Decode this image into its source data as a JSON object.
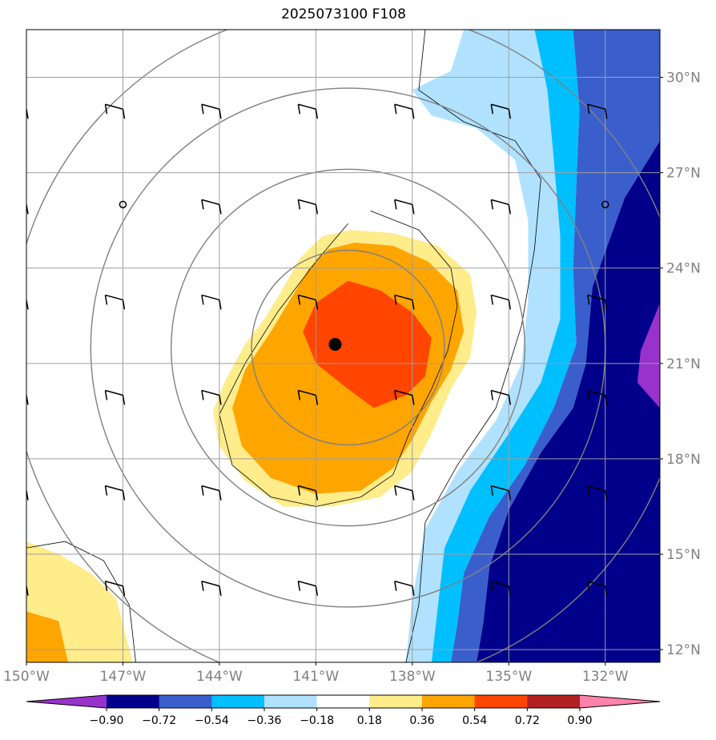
{
  "title": "2025073100 F108",
  "chart_data": {
    "type": "heatmap",
    "title": "2025073100 F108",
    "x_axis": {
      "ticks": [
        -150,
        -147,
        -144,
        -141,
        -138,
        -135,
        -132
      ],
      "tick_labels": [
        "150°W",
        "147°W",
        "144°W",
        "141°W",
        "138°W",
        "135°W",
        "132°W"
      ],
      "range": [
        -150.0,
        -130.3
      ]
    },
    "y_axis": {
      "ticks": [
        12,
        15,
        18,
        21,
        24,
        27,
        30
      ],
      "tick_labels": [
        "12°N",
        "15°N",
        "18°N",
        "21°N",
        "24°N",
        "27°N",
        "30°N"
      ],
      "range": [
        11.6,
        31.5
      ],
      "position": "right"
    },
    "grid": true,
    "colorbar": {
      "orientation": "horizontal",
      "levels": [
        -0.9,
        -0.72,
        -0.54,
        -0.36,
        -0.18,
        0.18,
        0.36,
        0.54,
        0.72,
        0.9
      ],
      "tick_labels": [
        "−0.90",
        "−0.72",
        "−0.54",
        "−0.36",
        "−0.18",
        "0.18",
        "0.36",
        "0.54",
        "0.72",
        "0.90"
      ],
      "colors": [
        "#9932CC",
        "#00008B",
        "#3A5FCD",
        "#00BFFF",
        "#B0E2FF",
        "#FFFFFF",
        "#FFEC8B",
        "#FFA500",
        "#FF4500",
        "#B22222",
        "#FF82AB"
      ],
      "extend": "both"
    },
    "storm_center": {
      "lon": -140.4,
      "lat": 21.6
    },
    "range_rings_center": {
      "lon": -140.0,
      "lat": 21.5
    },
    "range_rings_deg": [
      3.0,
      5.5,
      8.0,
      10.5
    ],
    "filled_regions": [
      {
        "level": "0.18–0.36",
        "color": "#FFEC8B",
        "polygon": [
          [
            -139.9,
            25.2
          ],
          [
            -138.6,
            25.1
          ],
          [
            -137.2,
            24.7
          ],
          [
            -136.2,
            23.8
          ],
          [
            -136.0,
            22.6
          ],
          [
            -136.2,
            21.2
          ],
          [
            -136.8,
            20.2
          ],
          [
            -137.4,
            18.8
          ],
          [
            -138.0,
            17.6
          ],
          [
            -139.0,
            16.8
          ],
          [
            -140.5,
            16.5
          ],
          [
            -142.0,
            16.5
          ],
          [
            -143.2,
            17.3
          ],
          [
            -144.0,
            18.4
          ],
          [
            -144.2,
            19.5
          ],
          [
            -143.8,
            20.5
          ],
          [
            -143.2,
            21.6
          ],
          [
            -142.6,
            22.4
          ],
          [
            -142.0,
            23.4
          ],
          [
            -141.5,
            24.3
          ],
          [
            -140.8,
            25.0
          ]
        ]
      },
      {
        "level": "0.36–0.54",
        "color": "#FFA500",
        "polygon": [
          [
            -139.8,
            24.8
          ],
          [
            -138.6,
            24.7
          ],
          [
            -137.5,
            24.2
          ],
          [
            -136.6,
            23.3
          ],
          [
            -136.4,
            22.0
          ],
          [
            -136.8,
            20.8
          ],
          [
            -137.4,
            19.8
          ],
          [
            -138.0,
            18.6
          ],
          [
            -138.6,
            17.7
          ],
          [
            -139.6,
            17.0
          ],
          [
            -141.0,
            16.9
          ],
          [
            -142.4,
            17.4
          ],
          [
            -143.3,
            18.4
          ],
          [
            -143.6,
            19.6
          ],
          [
            -143.2,
            20.8
          ],
          [
            -142.4,
            22.0
          ],
          [
            -141.8,
            23.0
          ],
          [
            -141.2,
            24.0
          ],
          [
            -140.6,
            24.6
          ]
        ]
      },
      {
        "level": "0.54–0.72",
        "color": "#FF4500",
        "polygon": [
          [
            -140.0,
            23.6
          ],
          [
            -139.0,
            23.3
          ],
          [
            -138.0,
            22.6
          ],
          [
            -137.4,
            21.8
          ],
          [
            -137.6,
            20.6
          ],
          [
            -138.2,
            20.0
          ],
          [
            -139.2,
            19.6
          ],
          [
            -140.0,
            20.2
          ],
          [
            -141.0,
            21.0
          ],
          [
            -141.4,
            22.0
          ],
          [
            -141.0,
            22.9
          ]
        ]
      },
      {
        "level": "0.18–0.36",
        "color": "#FFEC8B",
        "polygon": [
          [
            -150.0,
            15.4
          ],
          [
            -149.0,
            15.0
          ],
          [
            -148.0,
            14.4
          ],
          [
            -147.2,
            13.6
          ],
          [
            -146.9,
            12.4
          ],
          [
            -146.7,
            11.6
          ],
          [
            -150.0,
            11.6
          ]
        ]
      },
      {
        "level": "0.36–0.54",
        "color": "#FFA500",
        "polygon": [
          [
            -150.0,
            13.2
          ],
          [
            -149.0,
            12.9
          ],
          [
            -148.8,
            12.0
          ],
          [
            -148.7,
            11.6
          ],
          [
            -150.0,
            11.6
          ]
        ]
      },
      {
        "level": "−0.36–−0.18",
        "color": "#B0E2FF",
        "polygon": [
          [
            -136.4,
            31.5
          ],
          [
            -134.2,
            31.5
          ],
          [
            -133.8,
            29.6
          ],
          [
            -133.6,
            27.4
          ],
          [
            -133.4,
            25.0
          ],
          [
            -133.4,
            22.4
          ],
          [
            -134.0,
            20.4
          ],
          [
            -135.0,
            18.8
          ],
          [
            -136.2,
            17.0
          ],
          [
            -137.0,
            15.2
          ],
          [
            -137.2,
            13.4
          ],
          [
            -137.4,
            11.6
          ],
          [
            -138.2,
            11.6
          ],
          [
            -138.0,
            13.6
          ],
          [
            -137.6,
            15.8
          ],
          [
            -136.6,
            17.6
          ],
          [
            -135.4,
            19.2
          ],
          [
            -134.6,
            21.0
          ],
          [
            -134.4,
            23.0
          ],
          [
            -134.4,
            25.5
          ],
          [
            -134.8,
            27.4
          ],
          [
            -136.0,
            28.4
          ],
          [
            -137.4,
            28.8
          ],
          [
            -138.0,
            29.6
          ],
          [
            -136.8,
            30.2
          ]
        ]
      },
      {
        "level": "−0.54–−0.36",
        "color": "#00BFFF",
        "polygon": [
          [
            -134.2,
            31.5
          ],
          [
            -133.0,
            31.5
          ],
          [
            -132.8,
            29.0
          ],
          [
            -132.9,
            26.6
          ],
          [
            -133.0,
            24.0
          ],
          [
            -132.9,
            21.6
          ],
          [
            -133.6,
            19.6
          ],
          [
            -134.5,
            17.8
          ],
          [
            -135.6,
            16.2
          ],
          [
            -136.4,
            14.4
          ],
          [
            -136.6,
            12.8
          ],
          [
            -136.8,
            11.6
          ],
          [
            -137.4,
            11.6
          ],
          [
            -137.2,
            13.4
          ],
          [
            -137.0,
            15.2
          ],
          [
            -136.2,
            17.0
          ],
          [
            -135.0,
            18.8
          ],
          [
            -134.0,
            20.4
          ],
          [
            -133.4,
            22.4
          ],
          [
            -133.4,
            25.0
          ],
          [
            -133.6,
            27.4
          ],
          [
            -133.8,
            29.6
          ]
        ]
      },
      {
        "level": "−0.72–−0.54",
        "color": "#3A5FCD",
        "polygon": [
          [
            -133.0,
            31.5
          ],
          [
            -130.3,
            31.5
          ],
          [
            -130.3,
            28.0
          ],
          [
            -131.4,
            26.2
          ],
          [
            -132.4,
            23.4
          ],
          [
            -132.6,
            21.0
          ],
          [
            -133.0,
            19.6
          ],
          [
            -134.0,
            18.2
          ],
          [
            -135.0,
            16.4
          ],
          [
            -135.6,
            14.6
          ],
          [
            -135.8,
            12.8
          ],
          [
            -136.0,
            11.6
          ],
          [
            -136.8,
            11.6
          ],
          [
            -136.6,
            12.8
          ],
          [
            -136.4,
            14.4
          ],
          [
            -135.6,
            16.2
          ],
          [
            -134.5,
            17.8
          ],
          [
            -133.6,
            19.6
          ],
          [
            -132.9,
            21.6
          ],
          [
            -133.0,
            24.0
          ],
          [
            -132.9,
            26.6
          ],
          [
            -132.8,
            29.0
          ]
        ]
      },
      {
        "level": "−0.90–−0.72",
        "color": "#00008B",
        "polygon": [
          [
            -130.3,
            28.0
          ],
          [
            -130.3,
            11.6
          ],
          [
            -136.0,
            11.6
          ],
          [
            -135.8,
            12.8
          ],
          [
            -135.6,
            14.6
          ],
          [
            -135.0,
            16.4
          ],
          [
            -134.0,
            18.2
          ],
          [
            -133.0,
            19.6
          ],
          [
            -132.6,
            21.0
          ],
          [
            -132.4,
            23.4
          ],
          [
            -131.4,
            26.2
          ]
        ]
      },
      {
        "level": "< −0.90",
        "color": "#9932CC",
        "polygon": [
          [
            -130.3,
            22.9
          ],
          [
            -130.9,
            21.4
          ],
          [
            -131.0,
            20.4
          ],
          [
            -130.3,
            19.6
          ]
        ]
      }
    ],
    "contours": [
      [
        [
          -139.3,
          25.8
        ],
        [
          -137.8,
          25.2
        ],
        [
          -136.8,
          24.0
        ],
        [
          -136.6,
          22.8
        ],
        [
          -136.9,
          21.4
        ],
        [
          -137.4,
          20.2
        ],
        [
          -138.1,
          18.8
        ],
        [
          -138.6,
          17.5
        ],
        [
          -139.6,
          16.8
        ],
        [
          -141.0,
          16.5
        ],
        [
          -142.4,
          16.8
        ],
        [
          -143.6,
          17.8
        ],
        [
          -144.0,
          19.4
        ],
        [
          -143.2,
          21.0
        ],
        [
          -142.2,
          22.6
        ],
        [
          -141.0,
          24.2
        ],
        [
          -140.0,
          25.4
        ]
      ],
      [
        [
          -137.6,
          31.5
        ],
        [
          -137.8,
          29.6
        ],
        [
          -136.4,
          28.6
        ],
        [
          -134.8,
          28.0
        ],
        [
          -134.0,
          26.8
        ],
        [
          -134.2,
          24.6
        ],
        [
          -134.6,
          22.2
        ],
        [
          -135.4,
          19.6
        ],
        [
          -136.6,
          17.8
        ],
        [
          -137.6,
          16.0
        ],
        [
          -137.8,
          13.4
        ],
        [
          -138.2,
          11.6
        ]
      ],
      [
        [
          -150.0,
          15.2
        ],
        [
          -148.8,
          15.4
        ],
        [
          -147.6,
          14.8
        ],
        [
          -146.8,
          13.4
        ],
        [
          -146.6,
          11.6
        ]
      ]
    ],
    "wind_barbs": [
      {
        "lon": -150,
        "lat": 29
      },
      {
        "lon": -147,
        "lat": 29
      },
      {
        "lon": -144,
        "lat": 29
      },
      {
        "lon": -141,
        "lat": 29
      },
      {
        "lon": -138,
        "lat": 29
      },
      {
        "lon": -135,
        "lat": 29
      },
      {
        "lon": -132,
        "lat": 29
      },
      {
        "lon": -150,
        "lat": 26
      },
      {
        "lon": -147,
        "lat": 26,
        "calm": true
      },
      {
        "lon": -144,
        "lat": 26
      },
      {
        "lon": -141,
        "lat": 26
      },
      {
        "lon": -138,
        "lat": 26
      },
      {
        "lon": -135,
        "lat": 26
      },
      {
        "lon": -132,
        "lat": 26,
        "calm": true
      },
      {
        "lon": -150,
        "lat": 23
      },
      {
        "lon": -147,
        "lat": 23
      },
      {
        "lon": -144,
        "lat": 23
      },
      {
        "lon": -141,
        "lat": 23
      },
      {
        "lon": -138,
        "lat": 23
      },
      {
        "lon": -135,
        "lat": 23
      },
      {
        "lon": -132,
        "lat": 23
      },
      {
        "lon": -150,
        "lat": 20
      },
      {
        "lon": -147,
        "lat": 20
      },
      {
        "lon": -144,
        "lat": 20
      },
      {
        "lon": -141,
        "lat": 20
      },
      {
        "lon": -138,
        "lat": 20
      },
      {
        "lon": -135,
        "lat": 20
      },
      {
        "lon": -132,
        "lat": 20
      },
      {
        "lon": -150,
        "lat": 17
      },
      {
        "lon": -147,
        "lat": 17
      },
      {
        "lon": -144,
        "lat": 17
      },
      {
        "lon": -141,
        "lat": 17
      },
      {
        "lon": -138,
        "lat": 17
      },
      {
        "lon": -135,
        "lat": 17
      },
      {
        "lon": -132,
        "lat": 17
      },
      {
        "lon": -150,
        "lat": 14
      },
      {
        "lon": -147,
        "lat": 14
      },
      {
        "lon": -144,
        "lat": 14
      },
      {
        "lon": -141,
        "lat": 14
      },
      {
        "lon": -138,
        "lat": 14
      },
      {
        "lon": -135,
        "lat": 14
      },
      {
        "lon": -132,
        "lat": 14
      }
    ]
  }
}
